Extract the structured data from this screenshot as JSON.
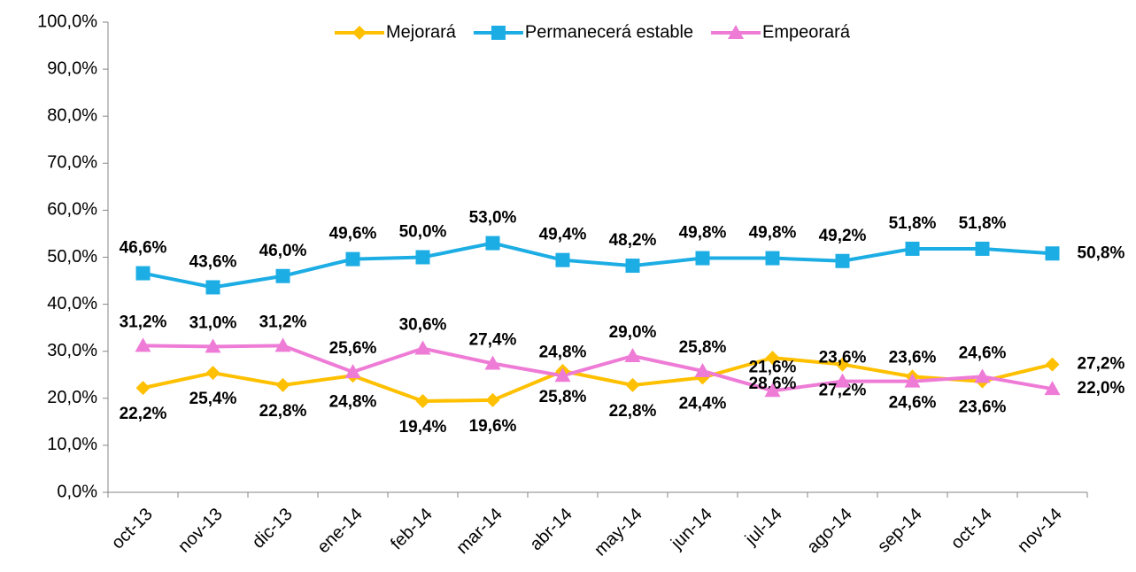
{
  "chart_data": {
    "type": "line",
    "categories": [
      "oct-13",
      "nov-13",
      "dic-13",
      "ene-14",
      "feb-14",
      "mar-14",
      "abr-14",
      "may-14",
      "jun-14",
      "jul-14",
      "ago-14",
      "sep-14",
      "oct-14",
      "nov-14"
    ],
    "series": [
      {
        "name": "Mejorará",
        "color": "#ffc000",
        "marker": "diamond",
        "values": [
          22.2,
          25.4,
          22.8,
          24.8,
          19.4,
          19.6,
          25.8,
          22.8,
          24.4,
          28.6,
          27.2,
          24.6,
          23.6,
          27.2
        ],
        "value_labels": [
          "22,2%",
          "25,4%",
          "22,8%",
          "24,8%",
          "19,4%",
          "19,6%",
          "25,8%",
          "22,8%",
          "24,4%",
          "28,6%",
          "27,2%",
          "24,6%",
          "23,6%",
          "27,2%"
        ]
      },
      {
        "name": "Permanecerá estable",
        "color": "#1cade4",
        "marker": "square",
        "values": [
          46.6,
          43.6,
          46.0,
          49.6,
          50.0,
          53.0,
          49.4,
          48.2,
          49.8,
          49.8,
          49.2,
          51.8,
          51.8,
          50.8
        ],
        "value_labels": [
          "46,6%",
          "43,6%",
          "46,0%",
          "49,6%",
          "50,0%",
          "53,0%",
          "49,4%",
          "48,2%",
          "49,8%",
          "49,8%",
          "49,2%",
          "51,8%",
          "51,8%",
          "50,8%"
        ]
      },
      {
        "name": "Empeorará",
        "color": "#ee7bd6",
        "marker": "triangle",
        "values": [
          31.2,
          31.0,
          31.2,
          25.6,
          30.6,
          27.4,
          24.8,
          29.0,
          25.8,
          21.6,
          23.6,
          23.6,
          24.6,
          22.0
        ],
        "value_labels": [
          "31,2%",
          "31,0%",
          "31,2%",
          "25,6%",
          "30,6%",
          "27,4%",
          "24,8%",
          "29,0%",
          "25,8%",
          "21,6%",
          "23,6%",
          "23,6%",
          "24,6%",
          "22,0%"
        ]
      }
    ],
    "ylim": [
      0,
      100
    ],
    "yticks": [
      {
        "value": 0,
        "label": "0,0%"
      },
      {
        "value": 10,
        "label": "10,0%"
      },
      {
        "value": 20,
        "label": "20,0%"
      },
      {
        "value": 30,
        "label": "30,0%"
      },
      {
        "value": 40,
        "label": "40,0%"
      },
      {
        "value": 50,
        "label": "50,0%"
      },
      {
        "value": 60,
        "label": "60,0%"
      },
      {
        "value": 70,
        "label": "70,0%"
      },
      {
        "value": 80,
        "label": "80,0%"
      },
      {
        "value": 90,
        "label": "90,0%"
      },
      {
        "value": 100,
        "label": "100,0%"
      }
    ],
    "legend": "top"
  }
}
